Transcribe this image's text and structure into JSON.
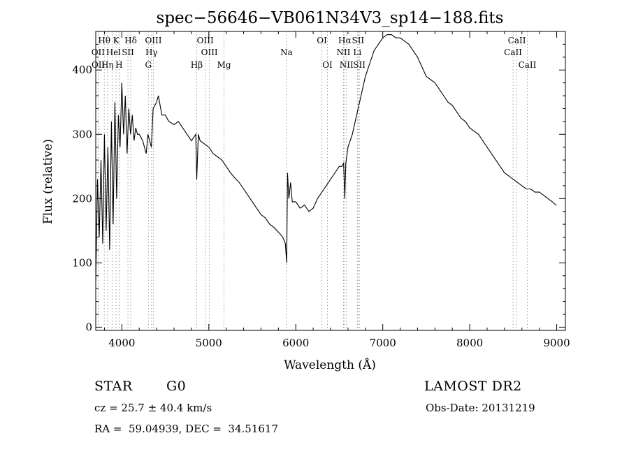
{
  "chart_data": {
    "type": "line",
    "title": "spec−56646−VB061N34V3_sp14−188.fits",
    "xlabel": "Wavelength (Å)",
    "ylabel": "Flux (relative)",
    "xlim": [
      3700,
      9100
    ],
    "ylim": [
      -5,
      460
    ],
    "x_ticks": [
      4000,
      5000,
      6000,
      7000,
      8000,
      9000
    ],
    "y_ticks": [
      0,
      100,
      200,
      300,
      400
    ],
    "grid": false,
    "legend": "none",
    "line_color": "#000000",
    "series": [
      {
        "x": [
          3700,
          3720,
          3740,
          3760,
          3780,
          3800,
          3820,
          3840,
          3860,
          3880,
          3900,
          3920,
          3940,
          3960,
          3980,
          4000,
          4020,
          4040,
          4060,
          4080,
          4100,
          4120,
          4140,
          4160,
          4180,
          4200,
          4240,
          4280,
          4300,
          4340,
          4360,
          4400,
          4420,
          4460,
          4500,
          4540,
          4600,
          4650,
          4700,
          4750,
          4800,
          4850,
          4861,
          4880,
          4900,
          4950,
          5000,
          5050,
          5100,
          5150,
          5200,
          5250,
          5300,
          5350,
          5400,
          5450,
          5500,
          5550,
          5600,
          5650,
          5700,
          5750,
          5800,
          5850,
          5880,
          5895,
          5905,
          5920,
          5940,
          5960,
          6000,
          6050,
          6100,
          6150,
          6200,
          6250,
          6300,
          6350,
          6400,
          6450,
          6500,
          6530,
          6550,
          6563,
          6575,
          6600,
          6650,
          6700,
          6750,
          6800,
          6850,
          6900,
          6950,
          7000,
          7050,
          7100,
          7150,
          7200,
          7250,
          7300,
          7350,
          7400,
          7450,
          7500,
          7550,
          7600,
          7650,
          7700,
          7750,
          7800,
          7850,
          7900,
          7950,
          8000,
          8050,
          8100,
          8150,
          8200,
          8250,
          8300,
          8350,
          8400,
          8450,
          8500,
          8550,
          8600,
          8650,
          8700,
          8750,
          8800,
          8850,
          8900,
          8950,
          8990,
          9000
        ],
        "y": [
          70,
          230,
          140,
          260,
          130,
          300,
          150,
          280,
          120,
          320,
          160,
          350,
          200,
          330,
          280,
          380,
          300,
          360,
          270,
          340,
          300,
          330,
          290,
          310,
          300,
          300,
          290,
          270,
          300,
          280,
          340,
          350,
          360,
          330,
          330,
          320,
          315,
          320,
          310,
          300,
          290,
          300,
          230,
          300,
          290,
          285,
          280,
          270,
          265,
          260,
          250,
          240,
          232,
          225,
          215,
          205,
          195,
          185,
          175,
          170,
          160,
          155,
          148,
          140,
          130,
          100,
          240,
          200,
          225,
          195,
          195,
          185,
          190,
          180,
          185,
          200,
          210,
          220,
          230,
          240,
          250,
          250,
          255,
          200,
          255,
          280,
          300,
          330,
          360,
          390,
          410,
          430,
          440,
          450,
          455,
          455,
          450,
          450,
          445,
          440,
          430,
          420,
          405,
          390,
          385,
          380,
          370,
          360,
          350,
          345,
          335,
          325,
          320,
          310,
          305,
          300,
          290,
          280,
          270,
          260,
          250,
          240,
          235,
          230,
          225,
          220,
          215,
          215,
          210,
          210,
          205,
          200,
          195,
          190,
          190
        ]
      }
    ],
    "lines": [
      {
        "label": "Hθ",
        "x": 3798,
        "row": 0,
        "color": "#000000"
      },
      {
        "label": "OII",
        "x": 3727,
        "row": 1,
        "color": "#000000"
      },
      {
        "label": "OII",
        "x": 3729,
        "row": 2,
        "color": "#000000"
      },
      {
        "label": "K",
        "x": 3934,
        "row": 0,
        "color": "#000000"
      },
      {
        "label": "Hδ",
        "x": 4102,
        "row": 0,
        "color": "#000000"
      },
      {
        "label": "He",
        "x": 3889,
        "row": 1,
        "color": "#000000"
      },
      {
        "label": "I",
        "x": 3970,
        "row": 1,
        "color": "#000000"
      },
      {
        "label": "SII",
        "x": 4070,
        "row": 1,
        "color": "#000000"
      },
      {
        "label": "Hη",
        "x": 3835,
        "row": 2,
        "color": "#000000"
      },
      {
        "label": "H",
        "x": 3968,
        "row": 2,
        "color": "#000000"
      },
      {
        "label": "OIII",
        "x": 4363,
        "row": 0,
        "color": "#000000"
      },
      {
        "label": "Hγ",
        "x": 4341,
        "row": 1,
        "color": "#000000"
      },
      {
        "label": "G",
        "x": 4305,
        "row": 2,
        "color": "#000000"
      },
      {
        "label": "OIII",
        "x": 4959,
        "row": 0,
        "color": "#000000"
      },
      {
        "label": "OIII",
        "x": 5007,
        "row": 1,
        "color": "#000000"
      },
      {
        "label": "Hβ",
        "x": 4861,
        "row": 2,
        "color": "#000000"
      },
      {
        "label": "Mg",
        "x": 5175,
        "row": 2,
        "color": "#000000"
      },
      {
        "label": "Na",
        "x": 5893,
        "row": 1,
        "color": "#000000"
      },
      {
        "label": "OI",
        "x": 6300,
        "row": 0,
        "color": "#000000"
      },
      {
        "label": "OI",
        "x": 6364,
        "row": 2,
        "color": "#000000"
      },
      {
        "label": "Hα",
        "x": 6563,
        "row": 0,
        "color": "#000000"
      },
      {
        "label": "SII",
        "x": 6716,
        "row": 0,
        "color": "#000000"
      },
      {
        "label": "NII",
        "x": 6548,
        "row": 1,
        "color": "#000000"
      },
      {
        "label": "Li",
        "x": 6708,
        "row": 1,
        "color": "#000000"
      },
      {
        "label": "NII",
        "x": 6583,
        "row": 2,
        "color": "#000000"
      },
      {
        "label": "SII",
        "x": 6731,
        "row": 2,
        "color": "#000000"
      },
      {
        "label": "CaII",
        "x": 8542,
        "row": 0,
        "color": "#000000"
      },
      {
        "label": "CaII",
        "x": 8498,
        "row": 1,
        "color": "#000000"
      },
      {
        "label": "CaII",
        "x": 8662,
        "row": 2,
        "color": "#000000"
      }
    ]
  },
  "info": {
    "object_class": "STAR",
    "subclass": "G0",
    "survey": "LAMOST DR2",
    "cz": "cz = 25.7 ± 40.4 km/s",
    "obs_date": "Obs-Date: 20131219",
    "radec": "RA =  59.04939, DEC =  34.51617"
  }
}
